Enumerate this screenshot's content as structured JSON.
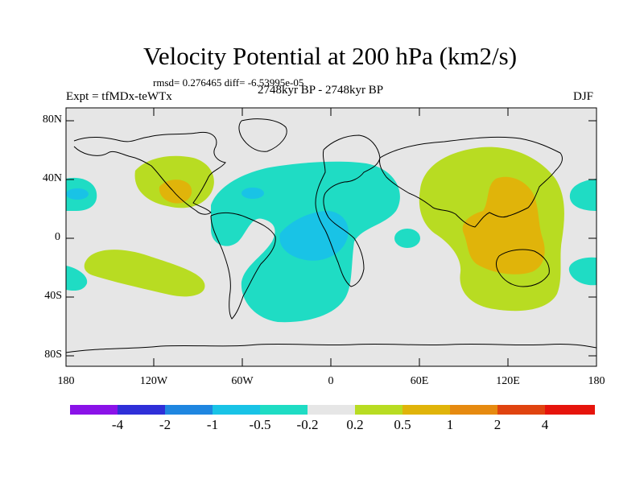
{
  "title": "Velocity Potential at 200 hPa (km2/s)",
  "stats": "rmsd= 0.276465 diff= -6.53995e-05",
  "experiment": "Expt = tfMDx-teWTx",
  "period": "2748kyr BP - 2748kyr BP",
  "season": "DJF",
  "axes": {
    "lat_ticks": [
      "80N",
      "40N",
      "0",
      "40S",
      "80S"
    ],
    "lon_ticks": [
      "180",
      "120W",
      "60W",
      "0",
      "60E",
      "120E",
      "180"
    ]
  },
  "colorbar": {
    "labels": [
      "-4",
      "-2",
      "-1",
      "-0.5",
      "-0.2",
      "0.2",
      "0.5",
      "1",
      "2",
      "4"
    ],
    "colors": [
      "#8a12e8",
      "#2f2fd8",
      "#1f86e0",
      "#19c3e6",
      "#1fdcc4",
      "#e6e6e6",
      "#b8dc22",
      "#e0b40a",
      "#e68a10",
      "#e04410",
      "#e6140c"
    ]
  },
  "map_colors": {
    "neutral": "#e6e6e6",
    "neg_weak": "#1fdcc4",
    "neg_mod": "#19c3e6",
    "pos_weak": "#b8dc22",
    "pos_mod": "#e0b40a"
  }
}
